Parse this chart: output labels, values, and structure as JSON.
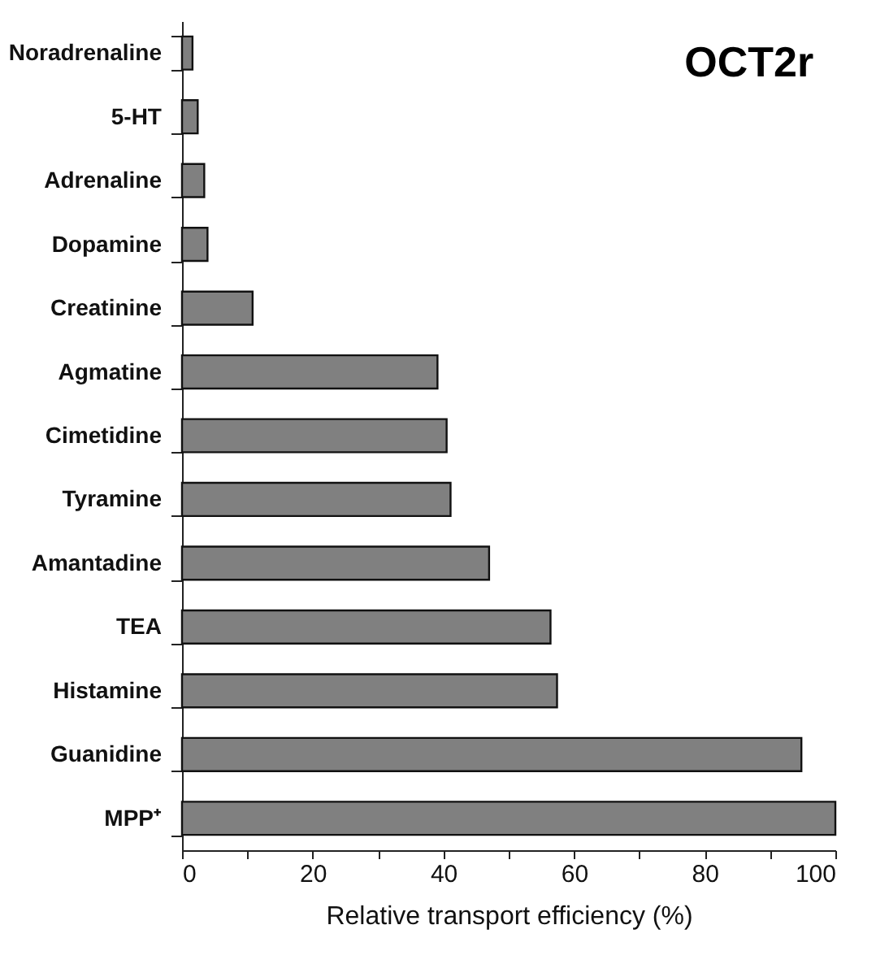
{
  "chart_data": {
    "type": "bar",
    "orientation": "horizontal",
    "title": "OCT2r",
    "xlabel": "Relative transport efficiency (%)",
    "categories": [
      "Noradrenaline",
      "5-HT",
      "Adrenaline",
      "Dopamine",
      "Creatinine",
      "Agmatine",
      "Cimetidine",
      "Tyramine",
      "Amantadine",
      "TEA",
      "Histamine",
      "Guanidine",
      "MPP⁺"
    ],
    "values": [
      1.6,
      2.4,
      3.4,
      3.9,
      10.8,
      39.1,
      40.5,
      41.1,
      47.0,
      56.4,
      57.4,
      94.8,
      100
    ],
    "color": "#808080",
    "xlim": [
      0,
      100
    ],
    "xticks": [
      0,
      {
        "value": 10,
        "label": null
      },
      20,
      {
        "value": 30,
        "label": null
      },
      40,
      {
        "value": 50,
        "label": null
      },
      60,
      {
        "value": 70,
        "label": null
      },
      80,
      {
        "value": 90,
        "label": null
      },
      100
    ],
    "grid": false
  }
}
